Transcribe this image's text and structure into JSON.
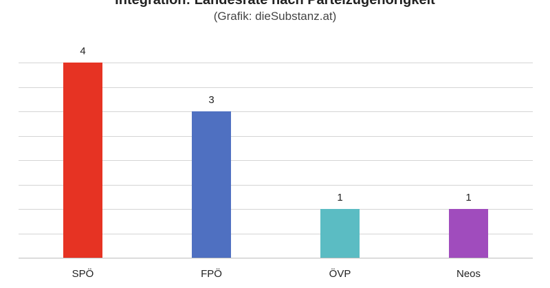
{
  "chart_data": {
    "type": "bar",
    "title": "Integration: Landesräte nach Parteizugehörigkeit",
    "subtitle": "(Grafik: dieSubstanz.at)",
    "categories": [
      "SPÖ",
      "FPÖ",
      "ÖVP",
      "Neos"
    ],
    "values": [
      4,
      3,
      1,
      1
    ],
    "colors": [
      "#e63323",
      "#4f70c1",
      "#5bbcc3",
      "#a04cbd"
    ],
    "ylim": [
      0,
      4.2
    ],
    "ystep": 0.5,
    "grid": true,
    "legend": "none",
    "xlabel": "",
    "ylabel": ""
  }
}
